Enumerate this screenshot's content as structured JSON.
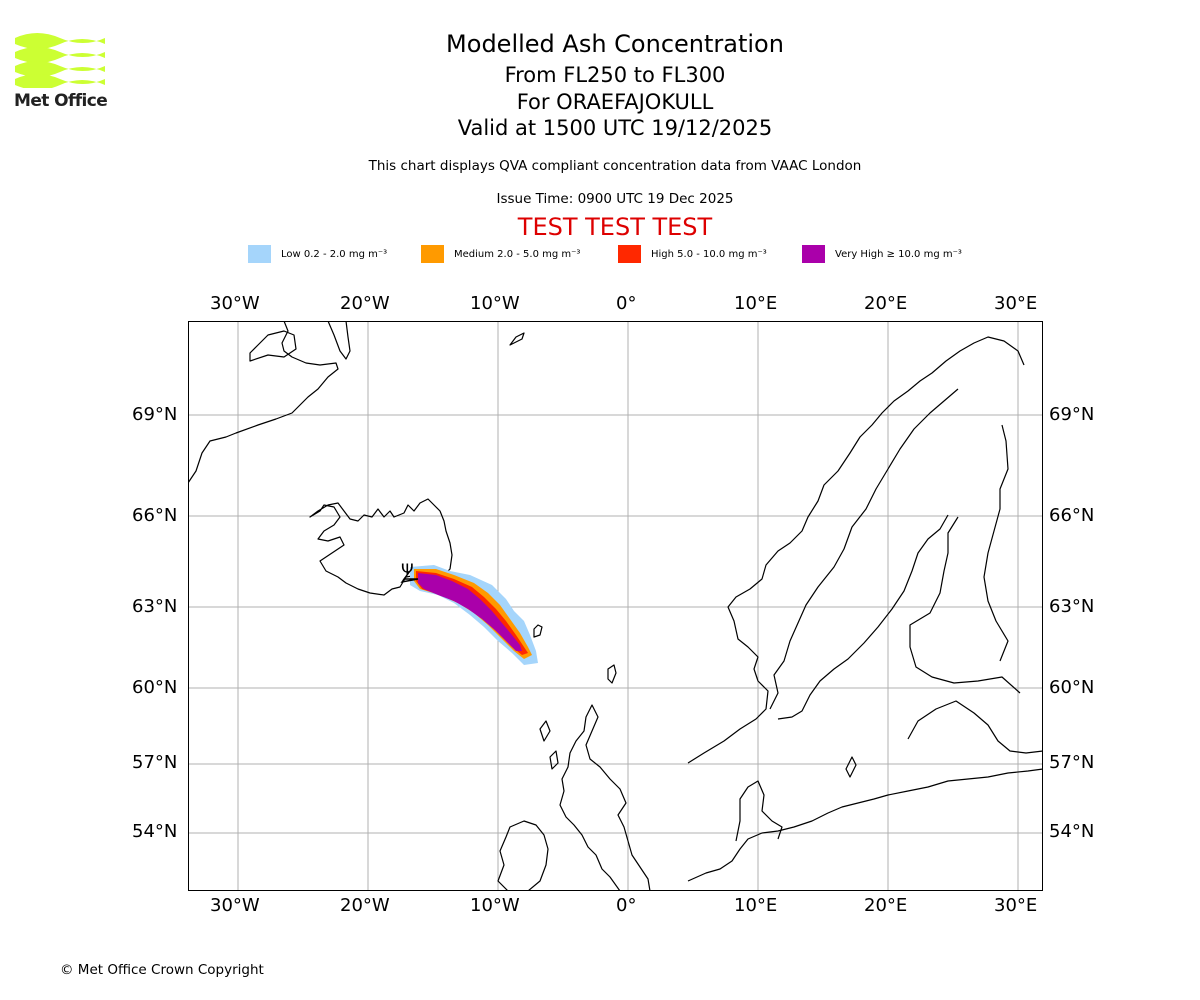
{
  "header": {
    "title": "Modelled Ash Concentration",
    "flight_levels": "From FL250 to FL300",
    "volcano": "For ORAEFAJOKULL",
    "valid_time": "Valid at 1500 UTC 19/12/2025",
    "compliance_note": "This chart displays QVA compliant concentration data from VAAC London",
    "issue_time": "Issue Time: 0900 UTC 19 Dec 2025",
    "test_banner": "TEST TEST TEST"
  },
  "logo": {
    "text": "Met Office",
    "color": "#ccff33"
  },
  "legend": [
    {
      "label": "Low 0.2 - 2.0 mg m⁻³",
      "color": "#a5d5fb"
    },
    {
      "label": "Medium 2.0 - 5.0 mg m⁻³",
      "color": "#ff9a00"
    },
    {
      "label": "High 5.0 - 10.0 mg m⁻³",
      "color": "#ff2800"
    },
    {
      "label": "Very High ≥ 10.0 mg m⁻³",
      "color": "#aa00aa"
    }
  ],
  "map": {
    "lon_ticks": [
      "30°W",
      "20°W",
      "10°W",
      "0°",
      "10°E",
      "20°E",
      "30°E"
    ],
    "lat_ticks": [
      "69°N",
      "66°N",
      "63°N",
      "60°N",
      "57°N",
      "54°N"
    ],
    "gridline_color": "#b0b0b0",
    "volcano_symbol": "Ψ"
  },
  "footer": {
    "copyright": "© Met Office Crown Copyright"
  }
}
